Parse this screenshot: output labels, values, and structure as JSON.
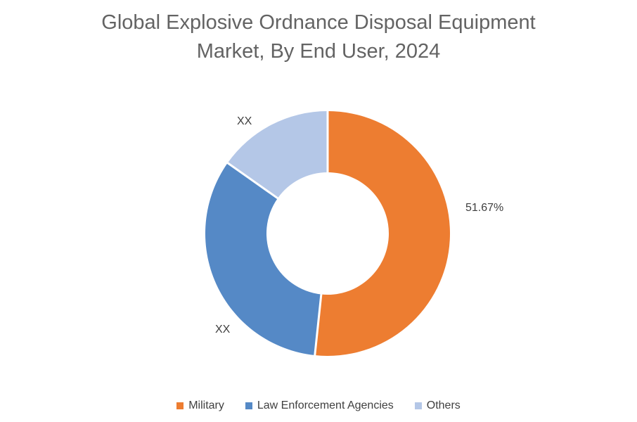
{
  "title": {
    "line1": "Global Explosive Ordnance Disposal Equipment",
    "line2": "Market, By End User, 2024"
  },
  "chart_data": {
    "type": "pie",
    "subtype": "donut",
    "title": "Global Explosive Ordnance Disposal Equipment Market, By End User, 2024",
    "categories": [
      "Military",
      "Law Enforcement Agencies",
      "Others"
    ],
    "segments": [
      {
        "name": "Military",
        "label": "51.67%",
        "value_pct": 51.67,
        "estimated": false,
        "color": "#ED7D31"
      },
      {
        "name": "Law Enforcement Agencies",
        "label": "XX",
        "value_pct": 33.11,
        "estimated": true,
        "color": "#5589C6"
      },
      {
        "name": "Others",
        "label": "XX",
        "value_pct": 15.22,
        "estimated": true,
        "color": "#B4C7E7"
      }
    ],
    "start_angle_deg": 0,
    "direction": "clockwise",
    "inner_radius_ratio": 0.5,
    "separator_color": "#FFFFFF",
    "legend_position": "bottom"
  },
  "colors": {
    "background": "#FFFFFF",
    "title_text": "#636363",
    "label_text": "#3F3F3F",
    "legend_text": "#404040"
  }
}
